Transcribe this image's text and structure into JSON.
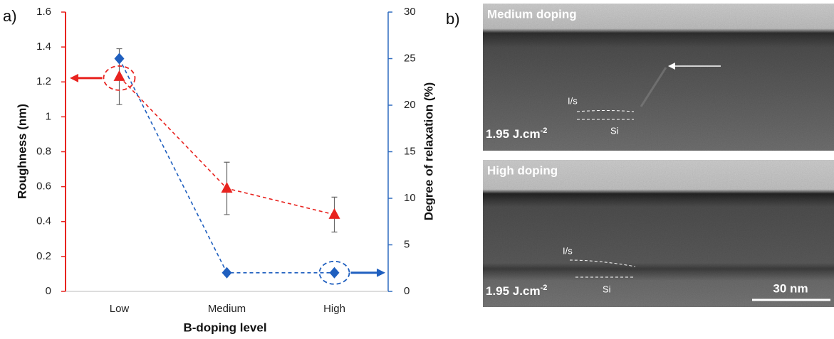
{
  "chart_data": {
    "type": "line",
    "panel_label": "a)",
    "categories": [
      "Low",
      "Medium",
      "High"
    ],
    "xlabel": "B-doping level",
    "ylabel": "Roughness (nm)",
    "y2label": "Degree of relaxation (%)",
    "ylim": [
      0,
      1.6
    ],
    "yticks": [
      0,
      0.2,
      0.4,
      0.6,
      0.8,
      1,
      1.2,
      1.4,
      1.6
    ],
    "y2lim": [
      0,
      30
    ],
    "y2ticks": [
      0,
      5,
      10,
      15,
      20,
      25,
      30
    ],
    "left_axis_color": "#e8231f",
    "right_axis_color": "#2e6bbf",
    "series": [
      {
        "color": "#e8231f",
        "marker": "triangle",
        "values": [
          1.23,
          0.59,
          0.44
        ],
        "errors": [
          0.16,
          0.15,
          0.1
        ]
      },
      {
        "color": "#1f5fbf",
        "marker": "diamond",
        "axis": "y2",
        "values": [
          25,
          2,
          2
        ]
      }
    ]
  },
  "micrographs": {
    "panel_label": "b)",
    "images": [
      {
        "title": "Medium doping",
        "fluence": "1.95 J.cm",
        "fluence_exp": "-2",
        "interface_label": "I/s",
        "substrate_label": "Si"
      },
      {
        "title": "High doping",
        "fluence": "1.95 J.cm",
        "fluence_exp": "-2",
        "interface_label": "I/s",
        "substrate_label": "Si",
        "scale_bar": "30 nm"
      }
    ]
  }
}
